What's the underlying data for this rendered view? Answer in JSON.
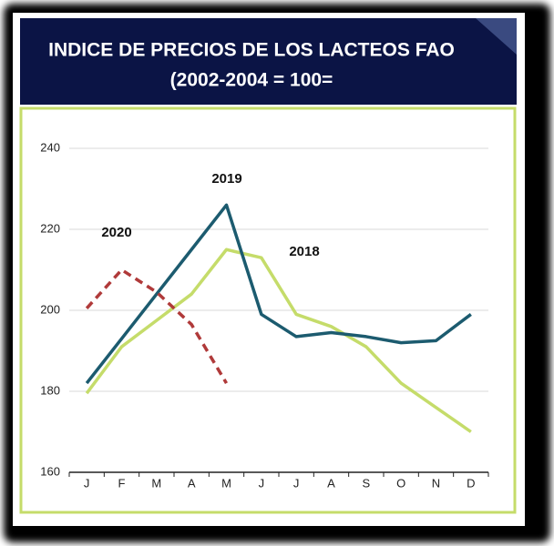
{
  "chart_data": {
    "type": "line",
    "title": "INDICE DE PRECIOS DE LOS LACTEOS FAO",
    "subtitle": "(2002-2004 = 100=",
    "categories": [
      "J",
      "F",
      "M",
      "A",
      "M",
      "J",
      "J",
      "A",
      "S",
      "O",
      "N",
      "D"
    ],
    "series": [
      {
        "name": "2018",
        "color": "#c5dc6a",
        "dashed": false,
        "values": [
          179.5,
          191,
          197.5,
          204,
          215,
          213,
          199,
          196,
          191,
          182,
          176,
          170
        ]
      },
      {
        "name": "2019",
        "color": "#1c5b6f",
        "dashed": false,
        "values": [
          182,
          193,
          204,
          215,
          226,
          199,
          193.5,
          194.5,
          193.5,
          192,
          192.5,
          199
        ]
      },
      {
        "name": "2020",
        "color": "#b03a3a",
        "dashed": true,
        "values": [
          200.5,
          210,
          204.5,
          196.5,
          182,
          null,
          null,
          null,
          null,
          null,
          null,
          null
        ]
      }
    ],
    "ylim": [
      160,
      240
    ],
    "yticks": [
      160,
      180,
      200,
      220,
      240
    ],
    "grid": true
  }
}
